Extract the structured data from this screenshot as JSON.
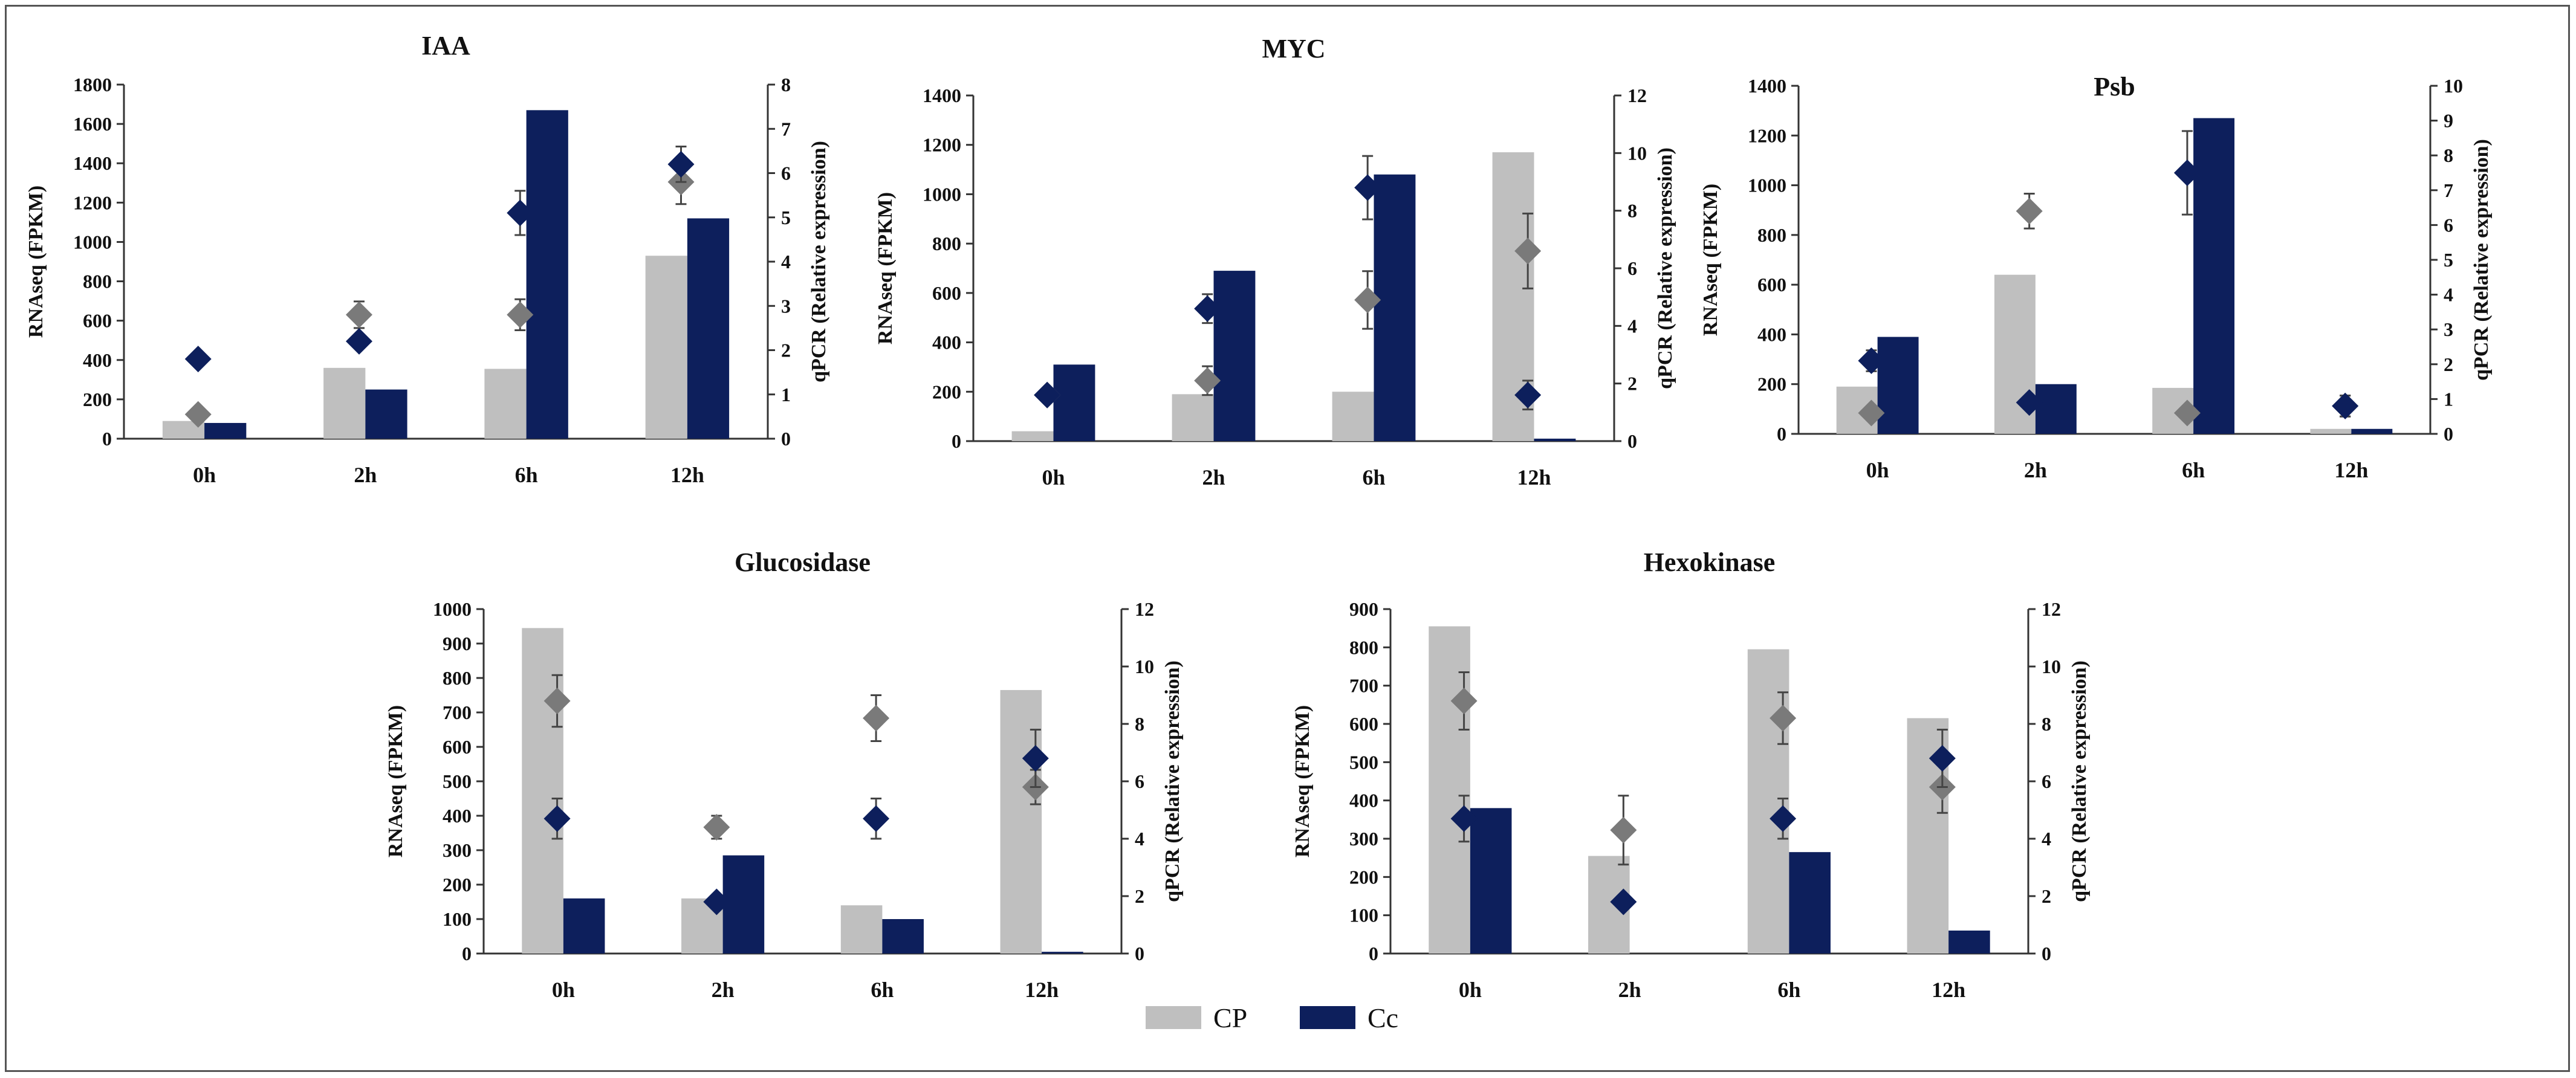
{
  "colors": {
    "CP": "#bfbfbf",
    "Cc": "#0d1f5c",
    "CP_marker": "#7a7a7a",
    "Cc_marker": "#0d1f5c",
    "axis": "#333333"
  },
  "legend": {
    "placement": "bottom-center",
    "items": [
      "CP",
      "Cc"
    ]
  },
  "chart_data": [
    {
      "type": "bar",
      "title": "IAA",
      "categories": [
        "0h",
        "2h",
        "6h",
        "12h"
      ],
      "ylabel": "RNAseq (FPKM)",
      "y2label": "qPCR (Relative expression)",
      "ylim": [
        0,
        1800
      ],
      "yticks": [
        0,
        200,
        400,
        600,
        800,
        1000,
        1200,
        1400,
        1600,
        1800
      ],
      "y2lim": [
        0,
        8
      ],
      "y2ticks": [
        0,
        1,
        2,
        3,
        4,
        5,
        6,
        7,
        8
      ],
      "series": [
        {
          "name": "CP",
          "values": [
            90,
            360,
            355,
            930
          ]
        },
        {
          "name": "Cc",
          "values": [
            80,
            250,
            1670,
            1120
          ]
        }
      ],
      "qpcr": [
        {
          "name": "CP",
          "values": [
            0.55,
            2.8,
            2.8,
            5.8
          ],
          "errors": [
            0,
            0.3,
            0.35,
            0.5
          ]
        },
        {
          "name": "Cc",
          "values": [
            1.8,
            2.2,
            5.1,
            6.2
          ],
          "errors": [
            0,
            0,
            0.5,
            0.4
          ]
        }
      ]
    },
    {
      "type": "bar",
      "title": "MYC",
      "categories": [
        "0h",
        "2h",
        "6h",
        "12h"
      ],
      "ylabel": "RNAseq (FPKM)",
      "y2label": "qPCR (Relative expression)",
      "ylim": [
        0,
        1400
      ],
      "yticks": [
        0,
        200,
        400,
        600,
        800,
        1000,
        1200,
        1400
      ],
      "y2lim": [
        0,
        12
      ],
      "y2ticks": [
        0,
        2,
        4,
        6,
        8,
        10,
        12
      ],
      "series": [
        {
          "name": "CP",
          "values": [
            40,
            190,
            200,
            1170
          ]
        },
        {
          "name": "Cc",
          "values": [
            310,
            690,
            1080,
            10
          ]
        }
      ],
      "qpcr": [
        {
          "name": "CP",
          "values": [
            1.6,
            2.1,
            4.9,
            6.6
          ],
          "errors": [
            0,
            0.5,
            1.0,
            1.3
          ]
        },
        {
          "name": "Cc",
          "values": [
            1.6,
            4.6,
            8.8,
            1.6
          ],
          "errors": [
            0.2,
            0.5,
            1.1,
            0.5
          ]
        }
      ]
    },
    {
      "type": "bar",
      "title": "Psb",
      "categories": [
        "0h",
        "2h",
        "6h",
        "12h"
      ],
      "ylabel": "RNAseq (FPKM)",
      "y2label": "qPCR (Relative expression)",
      "ylim": [
        0,
        1400
      ],
      "yticks": [
        0,
        200,
        400,
        600,
        800,
        1000,
        1200,
        1400
      ],
      "y2lim": [
        0,
        10
      ],
      "y2ticks": [
        0,
        1,
        2,
        3,
        4,
        5,
        6,
        7,
        8,
        9,
        10
      ],
      "series": [
        {
          "name": "CP",
          "values": [
            190,
            640,
            185,
            20
          ]
        },
        {
          "name": "Cc",
          "values": [
            390,
            200,
            1270,
            20
          ]
        }
      ],
      "qpcr": [
        {
          "name": "CP",
          "values": [
            0.6,
            6.4,
            0.6,
            0.8
          ],
          "errors": [
            0,
            0.5,
            0,
            0.3
          ]
        },
        {
          "name": "Cc",
          "values": [
            2.1,
            0.9,
            7.5,
            0.8
          ],
          "errors": [
            0.3,
            0,
            1.2,
            0.3
          ]
        }
      ]
    },
    {
      "type": "bar",
      "title": "Glucosidase",
      "categories": [
        "0h",
        "2h",
        "6h",
        "12h"
      ],
      "ylabel": "RNAseq (FPKM)",
      "y2label": "qPCR (Relative expression)",
      "ylim": [
        0,
        1000
      ],
      "yticks": [
        0,
        100,
        200,
        300,
        400,
        500,
        600,
        700,
        800,
        900,
        1000
      ],
      "y2lim": [
        0,
        12
      ],
      "y2ticks": [
        0,
        2,
        4,
        6,
        8,
        10,
        12
      ],
      "series": [
        {
          "name": "CP",
          "values": [
            945,
            160,
            140,
            765
          ]
        },
        {
          "name": "Cc",
          "values": [
            160,
            285,
            100,
            5
          ]
        }
      ],
      "qpcr": [
        {
          "name": "CP",
          "values": [
            8.8,
            4.4,
            8.2,
            5.8
          ],
          "errors": [
            0.9,
            0.4,
            0.8,
            0.6
          ]
        },
        {
          "name": "Cc",
          "values": [
            4.7,
            1.8,
            4.7,
            6.8
          ],
          "errors": [
            0.7,
            0,
            0.7,
            1.0
          ]
        }
      ]
    },
    {
      "type": "bar",
      "title": "Hexokinase",
      "categories": [
        "0h",
        "2h",
        "6h",
        "12h"
      ],
      "ylabel": "RNAseq (FPKM)",
      "y2label": "qPCR (Relative expression)",
      "ylim": [
        0,
        900
      ],
      "yticks": [
        0,
        100,
        200,
        300,
        400,
        500,
        600,
        700,
        800,
        900
      ],
      "y2lim": [
        0,
        12
      ],
      "y2ticks": [
        0,
        2,
        4,
        6,
        8,
        10,
        12
      ],
      "series": [
        {
          "name": "CP",
          "values": [
            855,
            255,
            795,
            615
          ]
        },
        {
          "name": "Cc",
          "values": [
            380,
            0,
            265,
            60
          ]
        }
      ],
      "qpcr": [
        {
          "name": "CP",
          "values": [
            8.8,
            4.3,
            8.2,
            5.8
          ],
          "errors": [
            1.0,
            1.2,
            0.9,
            0.9
          ]
        },
        {
          "name": "Cc",
          "values": [
            4.7,
            1.8,
            4.7,
            6.8
          ],
          "errors": [
            0.8,
            0,
            0.7,
            1.0
          ]
        }
      ]
    }
  ]
}
